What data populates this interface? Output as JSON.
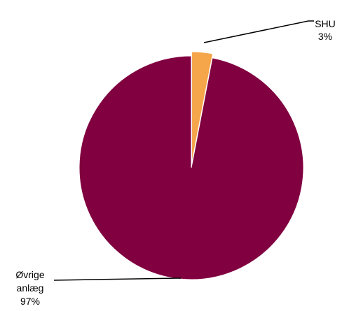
{
  "chart_data": {
    "type": "pie",
    "title": "",
    "start_angle_deg": 0,
    "slices": [
      {
        "label": "SHU",
        "value": 3,
        "value_label": "3%",
        "color": "#F5A54A"
      },
      {
        "label": "Øvrige anlæg",
        "label_lines": [
          "Øvrige",
          "anlæg"
        ],
        "value": 97,
        "value_label": "97%",
        "color": "#800040"
      }
    ],
    "legend": "none",
    "data_labels": "outside-with-leader-lines"
  }
}
